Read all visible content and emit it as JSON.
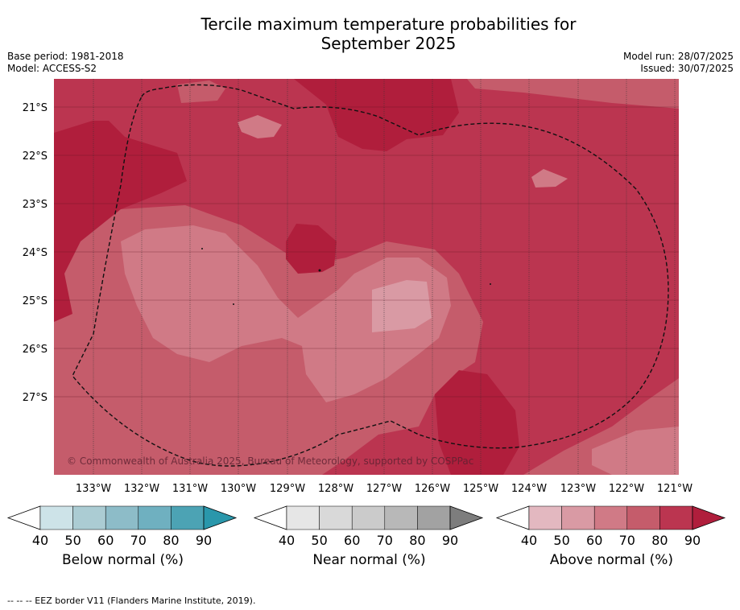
{
  "title_line1": "Tercile maximum temperature probabilities for",
  "title_line2": "September 2025",
  "base_period": "Base period: 1981-2018",
  "model": "Model: ACCESS-S2",
  "model_run": "Model run: 28/07/2025",
  "issued": "Issued: 30/07/2025",
  "copyright": "© Commonwealth of Australia 2025, Bureau of Meteorology, supported by COSPPac",
  "footnote": "--  --  -- EEZ border V11 (Flanders Marine Institute, 2019).",
  "lat_labels": [
    "21°S",
    "22°S",
    "23°S",
    "24°S",
    "25°S",
    "26°S",
    "27°S"
  ],
  "lon_labels": [
    "133°W",
    "132°W",
    "131°W",
    "130°W",
    "129°W",
    "128°W",
    "127°W",
    "126°W",
    "125°W",
    "124°W",
    "123°W",
    "122°W",
    "121°W"
  ],
  "colorbars": [
    {
      "name": "below",
      "label": "Below normal (%)",
      "ticks": [
        "40",
        "50",
        "60",
        "70",
        "80",
        "90"
      ],
      "colors": [
        "#ffffff",
        "#cde3e8",
        "#abccd3",
        "#8dbcc8",
        "#6fb0c0",
        "#4ca3b4",
        "#2a97ab"
      ]
    },
    {
      "name": "near",
      "label": "Near normal (%)",
      "ticks": [
        "40",
        "50",
        "60",
        "70",
        "80",
        "90"
      ],
      "colors": [
        "#ffffff",
        "#e6e6e6",
        "#d9d9d9",
        "#cbcbcb",
        "#b8b8b8",
        "#a2a2a2",
        "#7d7d7d"
      ]
    },
    {
      "name": "above",
      "label": "Above normal (%)",
      "ticks": [
        "40",
        "50",
        "60",
        "70",
        "80",
        "90"
      ],
      "colors": [
        "#ffffff",
        "#e3b8c0",
        "#d99aa4",
        "#d07a86",
        "#c55c6b",
        "#bb3550",
        "#b01e3c"
      ]
    }
  ]
}
